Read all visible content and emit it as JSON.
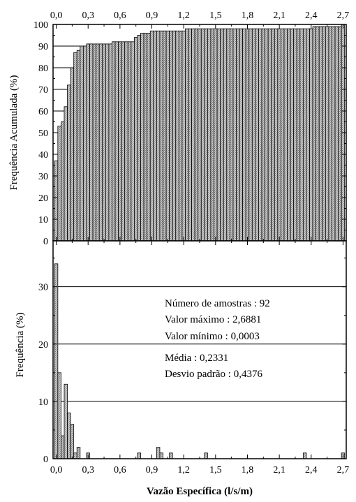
{
  "chart_data": [
    {
      "type": "bar",
      "x_step": 0.03,
      "ylabel": "Frequência Acumulada (%)",
      "xlim": [
        -0.03,
        2.73
      ],
      "ylim": [
        0,
        100
      ],
      "x_ticks": [
        "0,0",
        "0,3",
        "0,6",
        "0,9",
        "1,2",
        "1,5",
        "1,8",
        "2,1",
        "2,4",
        "2,7"
      ],
      "x_tick_values": [
        0,
        0.3,
        0.6,
        0.9,
        1.2,
        1.5,
        1.8,
        2.1,
        2.4,
        2.7
      ],
      "y_ticks": [
        "0",
        "10",
        "20",
        "30",
        "40",
        "50",
        "60",
        "70",
        "80",
        "90",
        "100"
      ],
      "y_tick_values": [
        0,
        10,
        20,
        30,
        40,
        50,
        60,
        70,
        80,
        90,
        100
      ],
      "gridlines_y": [
        10,
        20,
        30,
        40,
        50,
        60,
        70,
        80,
        90
      ],
      "values": [
        37,
        53,
        55,
        62,
        72,
        80,
        87,
        88,
        90,
        90,
        91,
        91,
        91,
        91,
        91,
        91,
        91,
        91,
        92,
        92,
        92,
        92,
        92,
        92,
        92,
        94,
        95,
        96,
        96,
        96,
        97,
        97,
        97,
        97,
        97,
        97,
        97,
        97,
        97,
        97,
        97,
        98,
        98,
        98,
        98,
        98,
        98,
        98,
        98,
        98,
        98,
        98,
        98,
        98,
        98,
        98,
        98,
        98,
        98,
        98,
        98,
        98,
        98,
        98,
        98,
        98,
        98,
        98,
        98,
        98,
        98,
        98,
        98,
        98,
        98,
        98,
        98,
        98,
        98,
        98,
        98,
        99,
        99,
        99,
        99,
        99,
        99,
        99,
        99,
        99,
        100
      ]
    },
    {
      "type": "bar",
      "x_step": 0.03,
      "xlabel": "Vazão Específica (l/s/m)",
      "ylabel": "Frequência (%)",
      "xlim": [
        -0.03,
        2.73
      ],
      "ylim": [
        0,
        38
      ],
      "x_ticks": [
        "0,0",
        "0,3",
        "0,6",
        "0,9",
        "1,2",
        "1,5",
        "1,8",
        "2,1",
        "2,4",
        "2,7"
      ],
      "x_tick_values": [
        0,
        0.3,
        0.6,
        0.9,
        1.2,
        1.5,
        1.8,
        2.1,
        2.4,
        2.7
      ],
      "y_ticks": [
        "0",
        "10",
        "20",
        "30"
      ],
      "y_tick_values": [
        0,
        10,
        20,
        30
      ],
      "gridlines_y": [
        10,
        20,
        30
      ],
      "values": [
        34,
        15,
        4,
        13,
        8,
        6,
        1,
        2,
        0,
        0,
        1,
        0,
        0,
        0,
        0,
        0,
        0,
        0,
        0,
        0,
        0,
        0,
        0,
        0,
        0,
        0,
        1,
        0,
        0,
        0,
        0,
        0,
        2,
        1,
        0,
        0,
        1,
        0,
        0,
        0,
        0,
        0,
        0,
        0,
        0,
        0,
        0,
        1,
        0,
        0,
        0,
        0,
        0,
        0,
        0,
        0,
        0,
        0,
        0,
        0,
        0,
        0,
        0,
        0,
        0,
        0,
        0,
        0,
        0,
        0,
        0,
        0,
        0,
        0,
        0,
        0,
        0,
        0,
        1,
        0,
        0,
        0,
        0,
        0,
        0,
        0,
        0,
        0,
        0,
        0,
        1
      ],
      "annotations": [
        "Número de amostras : 92",
        "Valor máximo : 2,6881",
        "Valor mínimo : 0,0003",
        "Média : 0,2331",
        "Desvio padrão : 0,4376"
      ]
    }
  ],
  "colors": {
    "bar_fill": "#c0c0c0",
    "bar_stroke": "#000000",
    "grid": "#000000",
    "background": "#ffffff"
  }
}
